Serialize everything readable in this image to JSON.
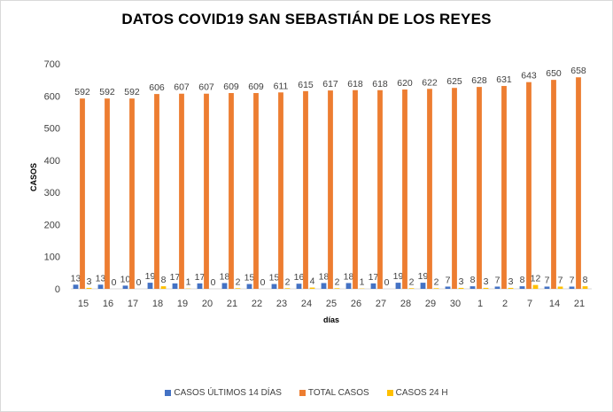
{
  "chart_data": {
    "type": "bar",
    "title": "DATOS COVID19 SAN SEBASTIÁN DE LOS REYES",
    "xlabel": "días",
    "ylabel": "CASOS",
    "ylim": [
      0,
      700
    ],
    "yticks": [
      0,
      100,
      200,
      300,
      400,
      500,
      600,
      700
    ],
    "grid": false,
    "legend_position": "bottom",
    "categories": [
      "15",
      "16",
      "17",
      "18",
      "19",
      "20",
      "21",
      "22",
      "23",
      "24",
      "25",
      "26",
      "27",
      "28",
      "29",
      "30",
      "1",
      "2",
      "7",
      "14",
      "21"
    ],
    "series": [
      {
        "name": "CASOS ÚLTIMOS 14 DÍAS",
        "color": "#4472c4",
        "values": [
          13,
          13,
          10,
          19,
          17,
          17,
          18,
          15,
          15,
          16,
          18,
          18,
          17,
          19,
          19,
          7,
          8,
          7,
          8,
          7,
          7
        ]
      },
      {
        "name": "TOTAL CASOS",
        "color": "#ed7d31",
        "values": [
          592,
          592,
          592,
          606,
          607,
          607,
          609,
          609,
          611,
          615,
          617,
          618,
          618,
          620,
          622,
          625,
          628,
          631,
          643,
          650,
          658
        ]
      },
      {
        "name": "CASOS 24 H",
        "color": "#ffc000",
        "values": [
          3,
          0,
          0,
          8,
          1,
          0,
          2,
          0,
          2,
          4,
          2,
          1,
          0,
          2,
          2,
          3,
          3,
          3,
          12,
          7,
          8
        ]
      }
    ]
  }
}
